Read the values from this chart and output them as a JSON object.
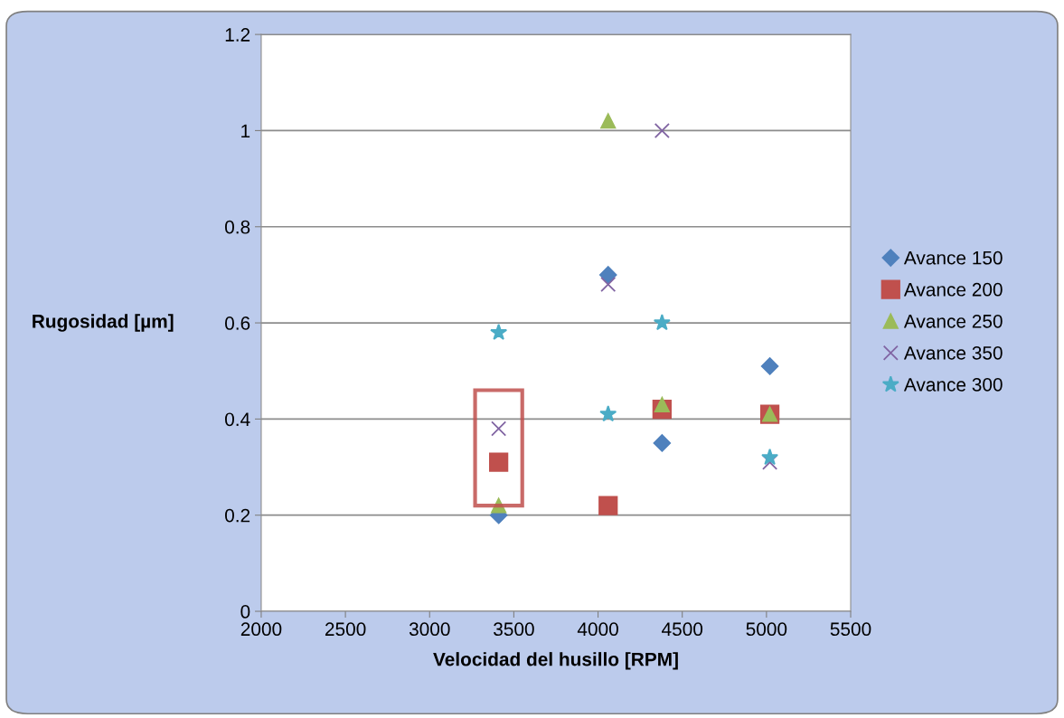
{
  "chart_data": {
    "type": "scatter",
    "xlabel": "Velocidad del husillo [RPM]",
    "ylabel": "Rugosidad [µm]",
    "x": [
      3410,
      4060,
      4380,
      5020
    ],
    "series": [
      {
        "name": "Avance 150",
        "color": "#4f81bd",
        "marker": "diamond",
        "values": [
          0.2,
          0.7,
          0.35,
          0.51
        ]
      },
      {
        "name": "Avance 200",
        "color": "#c0504d",
        "marker": "square",
        "values": [
          0.31,
          0.22,
          0.42,
          0.41
        ]
      },
      {
        "name": "Avance 250",
        "color": "#9bbb59",
        "marker": "triangle",
        "values": [
          0.22,
          1.02,
          0.43,
          0.41
        ]
      },
      {
        "name": "Avance 350",
        "color": "#8064a2",
        "marker": "cross",
        "values": [
          0.38,
          0.68,
          1.0,
          0.31
        ]
      },
      {
        "name": "Avance 300",
        "color": "#4bacc6",
        "marker": "star",
        "values": [
          0.58,
          0.41,
          0.6,
          0.32
        ]
      }
    ],
    "xlim": [
      2000,
      5500
    ],
    "xticks": [
      2000,
      2500,
      3000,
      3500,
      4000,
      4500,
      5000,
      5500
    ],
    "ylim": [
      0,
      1.2
    ],
    "yticks": [
      0,
      0.2,
      0.4,
      0.6,
      0.8,
      1,
      1.2
    ],
    "grid": "y",
    "legend": "right"
  }
}
